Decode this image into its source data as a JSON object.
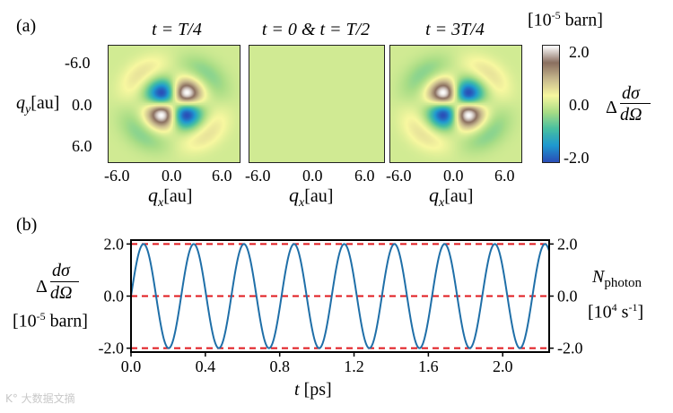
{
  "panel_a": {
    "label": "(a)",
    "colorbar": {
      "unit": "[10-5 barn]",
      "ticks": [
        "2.0",
        "0.0",
        "-2.0"
      ],
      "quantity": "Δ dσ/dΩ",
      "colors": [
        "#2a4fb8",
        "#1f9ad0",
        "#49c0a0",
        "#a9dd86",
        "#f8f8a0",
        "#c8b98e",
        "#8a6f60",
        "#ffffff"
      ]
    },
    "subplots": [
      {
        "title": "t = T/4",
        "pattern": "quadrupole",
        "sign": 1
      },
      {
        "title": "t = 0 & t = T/2",
        "pattern": "zero",
        "sign": 0
      },
      {
        "title": "t = 3T/4",
        "pattern": "quadrupole",
        "sign": -1
      }
    ],
    "x_ticks": [
      "-6.0",
      "0.0",
      "6.0"
    ],
    "y_ticks": [
      "-6.0",
      "0.0",
      "6.0"
    ],
    "xlabel": "qx[au]",
    "ylabel": "qy[au]"
  },
  "panel_b": {
    "label": "(b)",
    "left_ylabel_top": "Δ dσ/dΩ",
    "left_ylabel_unit": "[10-5 barn]",
    "right_ylabel": "Nphoton",
    "right_ylabel_unit": "[104 s-1]",
    "xlabel": "t [ps]"
  },
  "chart_data": [
    {
      "type": "heatmap",
      "title": "t = T/4",
      "x_range": [
        -8,
        8
      ],
      "y_range": [
        -8,
        8
      ],
      "xlabel": "qx [au]",
      "ylabel": "qy [au]",
      "value_range": [
        -2.2,
        2.2
      ],
      "description_values": {
        "peak_positive": 2.2,
        "peak_negative": -2.2
      }
    },
    {
      "type": "heatmap",
      "title": "t = 0 & t = T/2",
      "x_range": [
        -8,
        8
      ],
      "y_range": [
        -8,
        8
      ],
      "value_range": [
        0,
        0
      ]
    },
    {
      "type": "heatmap",
      "title": "t = 3T/4",
      "x_range": [
        -8,
        8
      ],
      "y_range": [
        -8,
        8
      ],
      "value_range": [
        -2.2,
        2.2
      ]
    },
    {
      "type": "line",
      "series": [
        {
          "name": "ΔdσdΩ",
          "amplitude": 2.0,
          "period_ps": 0.27,
          "phase_start_value": 0.0,
          "color": "#1f6fa8"
        }
      ],
      "reference_lines": [
        {
          "y": 2.0,
          "color": "#e0191e",
          "style": "dashed"
        },
        {
          "y": 0.0,
          "color": "#e0191e",
          "style": "dashed"
        },
        {
          "y": -2.0,
          "color": "#e0191e",
          "style": "dashed"
        }
      ],
      "xlim": [
        0.0,
        2.25
      ],
      "ylim": [
        -2.15,
        2.15
      ],
      "x_ticks": [
        "0.0",
        "0.4",
        "0.8",
        "1.2",
        "1.6",
        "2.0"
      ],
      "y_ticks_left": [
        "2.0",
        "0.0",
        "-2.0"
      ],
      "y_ticks_right": [
        "2.0",
        "0.0",
        "-2.0"
      ],
      "xlabel": "t [ps]"
    }
  ],
  "watermark": "K° 大数据文摘"
}
